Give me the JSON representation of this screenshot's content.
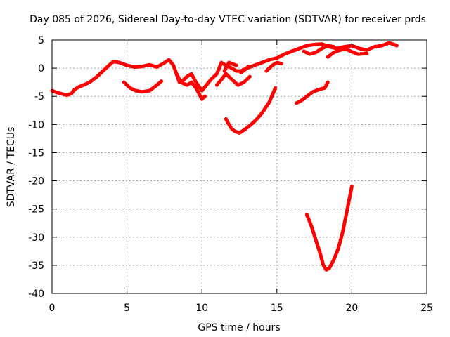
{
  "chart_data": {
    "type": "line",
    "title": "Day 085 of 2026, Sidereal Day-to-day VTEC variation (SDTVAR) for receiver prds",
    "xlabel": "GPS time / hours",
    "ylabel": "SDTVAR / TECUs",
    "xlim": [
      0,
      25
    ],
    "ylim": [
      -40,
      5
    ],
    "xticks": [
      0,
      5,
      10,
      15,
      20,
      25
    ],
    "yticks": [
      5,
      0,
      -5,
      -10,
      -15,
      -20,
      -25,
      -30,
      -35,
      -40
    ],
    "grid": true,
    "legend": false,
    "color": "#ff0000",
    "series": [
      {
        "x": [
          0.0,
          0.3,
          0.7,
          1.0,
          1.3,
          1.5,
          1.8,
          2.1,
          2.5,
          3.0,
          3.4,
          3.8,
          4.1,
          4.5,
          5.0,
          5.5,
          6.0,
          6.5,
          7.0,
          7.4,
          7.8,
          8.1,
          8.3,
          8.5,
          8.8,
          9.0,
          9.3,
          9.6,
          10.0,
          10.3,
          10.6,
          11.0,
          11.3,
          11.6,
          12.0,
          12.3,
          12.6,
          13.0,
          13.5,
          14.0,
          14.5,
          15.0,
          15.5,
          16.0,
          16.5,
          17.0,
          17.5,
          18.0,
          18.5,
          19.0,
          19.5,
          20.0,
          20.5,
          21.0,
          21.5,
          22.0,
          22.5,
          23.0
        ],
        "y": [
          -4.0,
          -4.3,
          -4.6,
          -4.8,
          -4.5,
          -3.8,
          -3.3,
          -3.0,
          -2.5,
          -1.5,
          -0.5,
          0.5,
          1.2,
          1.0,
          0.5,
          0.2,
          0.3,
          0.6,
          0.2,
          0.8,
          1.5,
          0.5,
          -1.0,
          -2.5,
          -2.0,
          -1.5,
          -1.0,
          -2.5,
          -4.0,
          -3.0,
          -2.0,
          -1.0,
          1.0,
          0.5,
          0.0,
          -0.5,
          -0.5,
          0.0,
          0.5,
          1.0,
          1.5,
          1.8,
          2.5,
          3.0,
          3.5,
          4.0,
          4.2,
          4.3,
          3.8,
          3.5,
          3.8,
          4.0,
          3.5,
          3.2,
          3.8,
          4.0,
          4.5,
          4.0
        ]
      },
      {
        "x": [
          8.3,
          8.6,
          9.0,
          9.3,
          9.6,
          10.0,
          10.2
        ],
        "y": [
          -1.0,
          -2.5,
          -3.0,
          -2.5,
          -3.5,
          -5.5,
          -5.0
        ]
      },
      {
        "x": [
          11.0,
          11.3,
          11.6,
          12.0,
          12.4,
          12.8,
          13.2
        ],
        "y": [
          -3.0,
          -2.0,
          -1.0,
          -2.0,
          -3.0,
          -2.5,
          -1.5
        ]
      },
      {
        "x": [
          11.5,
          11.8,
          12.0,
          12.3
        ],
        "y": [
          -0.5,
          1.0,
          0.8,
          0.5
        ]
      },
      {
        "x": [
          12.6,
          12.9,
          13.1
        ],
        "y": [
          -0.8,
          -0.2,
          0.3
        ]
      },
      {
        "x": [
          14.3,
          14.7,
          15.0,
          15.3
        ],
        "y": [
          -0.5,
          0.5,
          1.0,
          0.8
        ]
      },
      {
        "x": [
          18.4,
          18.8,
          19.2,
          19.6,
          20.0,
          20.4,
          21.0
        ],
        "y": [
          2.0,
          2.8,
          3.2,
          3.4,
          2.9,
          2.5,
          2.6
        ]
      },
      {
        "x": [
          16.8,
          17.2,
          17.6,
          18.0,
          18.4,
          18.8
        ],
        "y": [
          3.0,
          2.5,
          2.8,
          3.5,
          4.0,
          3.8
        ]
      },
      {
        "x": [
          4.8,
          5.2,
          5.6,
          6.0,
          6.5,
          7.0,
          7.3
        ],
        "y": [
          -2.5,
          -3.5,
          -4.0,
          -4.2,
          -4.0,
          -3.0,
          -2.3
        ]
      },
      {
        "x": [
          11.6,
          11.8,
          12.0,
          12.2,
          12.5,
          12.8,
          13.2,
          13.6,
          14.0,
          14.5,
          14.9
        ],
        "y": [
          -9.0,
          -10.0,
          -10.8,
          -11.2,
          -11.5,
          -11.0,
          -10.2,
          -9.2,
          -8.0,
          -6.0,
          -3.5
        ]
      },
      {
        "x": [
          16.3,
          16.6,
          17.0,
          17.4,
          17.8,
          18.2,
          18.4
        ],
        "y": [
          -6.2,
          -5.8,
          -5.0,
          -4.2,
          -3.8,
          -3.5,
          -2.5
        ]
      },
      {
        "x": [
          17.0,
          17.3,
          17.6,
          17.9,
          18.1,
          18.3,
          18.5,
          18.8,
          19.1,
          19.4,
          19.7,
          20.0
        ],
        "y": [
          -26.0,
          -28.0,
          -30.5,
          -33.0,
          -35.0,
          -35.8,
          -35.5,
          -34.0,
          -32.0,
          -29.0,
          -25.0,
          -21.0
        ]
      }
    ]
  }
}
